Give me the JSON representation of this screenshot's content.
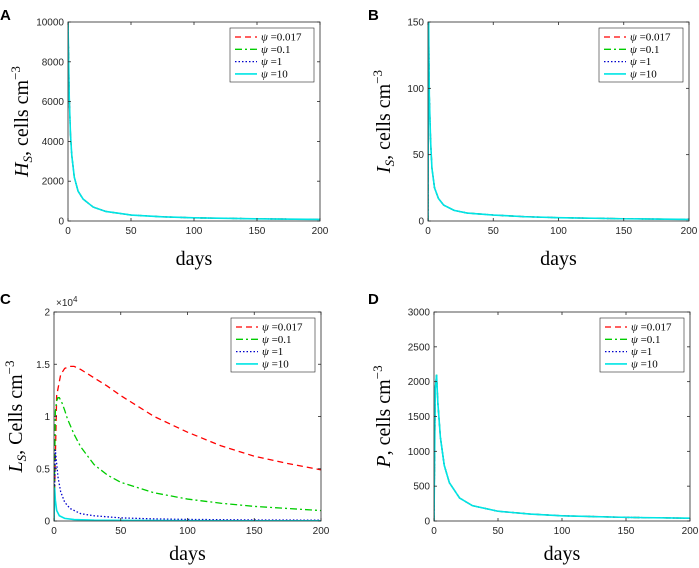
{
  "chart_data": [
    {
      "id": "A",
      "panel_label": "A",
      "type": "line",
      "xlabel": "days",
      "ylabel": {
        "main": "H",
        "sub": "S",
        "rest": ", cells cm",
        "sup": "−3"
      },
      "xlim": [
        0,
        200
      ],
      "ylim": [
        0,
        10000
      ],
      "xticks": [
        0,
        50,
        100,
        150,
        200
      ],
      "yticks": [
        0,
        2000,
        4000,
        6000,
        8000,
        10000
      ],
      "exponent": "",
      "series": [
        {
          "name": "ψ =0.017",
          "color": "#ff0000",
          "dash": "6,4",
          "x": [
            0,
            1,
            2,
            3,
            5,
            8,
            12,
            20,
            30,
            50,
            75,
            100,
            150,
            200
          ],
          "y": [
            10000,
            6200,
            4300,
            3300,
            2200,
            1500,
            1100,
            700,
            480,
            300,
            210,
            160,
            110,
            80
          ]
        },
        {
          "name": "ψ =0.1",
          "color": "#00cc00",
          "dash": "7,3,2,3",
          "x": [
            0,
            1,
            2,
            3,
            5,
            8,
            12,
            20,
            30,
            50,
            75,
            100,
            150,
            200
          ],
          "y": [
            10000,
            6200,
            4300,
            3300,
            2200,
            1500,
            1100,
            700,
            480,
            300,
            210,
            160,
            110,
            80
          ]
        },
        {
          "name": "ψ =1",
          "color": "#0000cc",
          "dash": "1.5,2",
          "x": [
            0,
            1,
            2,
            3,
            5,
            8,
            12,
            20,
            30,
            50,
            75,
            100,
            150,
            200
          ],
          "y": [
            10000,
            6200,
            4300,
            3300,
            2200,
            1500,
            1100,
            700,
            480,
            300,
            210,
            160,
            110,
            80
          ]
        },
        {
          "name": "ψ =10",
          "color": "#00e5e5",
          "dash": "",
          "x": [
            0,
            1,
            2,
            3,
            5,
            8,
            12,
            20,
            30,
            50,
            75,
            100,
            150,
            200
          ],
          "y": [
            10000,
            6200,
            4300,
            3300,
            2200,
            1500,
            1100,
            700,
            480,
            300,
            210,
            160,
            110,
            80
          ]
        }
      ]
    },
    {
      "id": "B",
      "panel_label": "B",
      "type": "line",
      "xlabel": "days",
      "ylabel": {
        "main": "I",
        "sub": "S",
        "rest": ", cells cm",
        "sup": "−3"
      },
      "xlim": [
        0,
        200
      ],
      "ylim": [
        0,
        150
      ],
      "xticks": [
        0,
        50,
        100,
        150,
        200
      ],
      "yticks": [
        0,
        50,
        100,
        150
      ],
      "exponent": "",
      "series": [
        {
          "name": "ψ =0.017",
          "color": "#ff0000",
          "dash": "6,4",
          "x": [
            0,
            0.5,
            1,
            2,
            3,
            5,
            8,
            12,
            20,
            30,
            50,
            75,
            100,
            150,
            200
          ],
          "y": [
            0,
            150,
            95,
            60,
            40,
            25,
            17,
            12,
            8,
            6,
            4.5,
            3.2,
            2.5,
            1.7,
            1.2
          ]
        },
        {
          "name": "ψ =0.1",
          "color": "#00cc00",
          "dash": "7,3,2,3",
          "x": [
            0,
            0.5,
            1,
            2,
            3,
            5,
            8,
            12,
            20,
            30,
            50,
            75,
            100,
            150,
            200
          ],
          "y": [
            0,
            150,
            95,
            60,
            40,
            25,
            17,
            12,
            8,
            6,
            4.5,
            3.2,
            2.5,
            1.7,
            1.2
          ]
        },
        {
          "name": "ψ =1",
          "color": "#0000cc",
          "dash": "1.5,2",
          "x": [
            0,
            0.5,
            1,
            2,
            3,
            5,
            8,
            12,
            20,
            30,
            50,
            75,
            100,
            150,
            200
          ],
          "y": [
            0,
            150,
            95,
            60,
            40,
            25,
            17,
            12,
            8,
            6,
            4.5,
            3.2,
            2.5,
            1.7,
            1.2
          ]
        },
        {
          "name": "ψ =10",
          "color": "#00e5e5",
          "dash": "",
          "x": [
            0,
            0.5,
            1,
            2,
            3,
            5,
            8,
            12,
            20,
            30,
            50,
            75,
            100,
            150,
            200
          ],
          "y": [
            0,
            150,
            95,
            60,
            40,
            25,
            17,
            12,
            8,
            6,
            4.5,
            3.2,
            2.5,
            1.7,
            1.2
          ]
        }
      ]
    },
    {
      "id": "C",
      "panel_label": "C",
      "type": "line",
      "xlabel": "days",
      "ylabel": {
        "main": "L",
        "sub": "S",
        "rest": ", Cells cm",
        "sup": "−3"
      },
      "xlim": [
        0,
        200
      ],
      "ylim": [
        0,
        2
      ],
      "xticks": [
        0,
        50,
        100,
        150,
        200
      ],
      "yticks": [
        0,
        0.5,
        1,
        1.5,
        2
      ],
      "exponent": "×10",
      "exponent_power": "4",
      "series": [
        {
          "name": "ψ =0.017",
          "color": "#ff0000",
          "dash": "6,4",
          "x": [
            0,
            2,
            5,
            8,
            12,
            15,
            20,
            30,
            40,
            50,
            75,
            100,
            125,
            150,
            175,
            200
          ],
          "y": [
            0,
            1.2,
            1.4,
            1.46,
            1.48,
            1.48,
            1.45,
            1.37,
            1.29,
            1.2,
            1.0,
            0.85,
            0.72,
            0.62,
            0.55,
            0.49
          ]
        },
        {
          "name": "ψ =0.1",
          "color": "#00cc00",
          "dash": "7,3,2,3",
          "x": [
            0,
            1,
            2,
            3,
            4,
            6,
            8,
            10,
            15,
            20,
            30,
            40,
            50,
            75,
            100,
            125,
            150,
            175,
            200
          ],
          "y": [
            0,
            1.05,
            1.15,
            1.18,
            1.18,
            1.13,
            1.06,
            0.98,
            0.83,
            0.71,
            0.54,
            0.44,
            0.37,
            0.27,
            0.21,
            0.17,
            0.14,
            0.12,
            0.1
          ]
        },
        {
          "name": "ψ =1",
          "color": "#0000cc",
          "dash": "1.5,2",
          "x": [
            0,
            1,
            2,
            3,
            5,
            8,
            12,
            20,
            30,
            50,
            75,
            100,
            150,
            200
          ],
          "y": [
            0,
            0.68,
            0.55,
            0.42,
            0.28,
            0.18,
            0.12,
            0.07,
            0.05,
            0.03,
            0.02,
            0.015,
            0.01,
            0.008
          ]
        },
        {
          "name": "ψ =10",
          "color": "#00e5e5",
          "dash": "",
          "x": [
            0,
            0.5,
            1,
            2,
            4,
            8,
            15,
            30,
            60,
            100,
            200
          ],
          "y": [
            0,
            0.32,
            0.2,
            0.1,
            0.05,
            0.025,
            0.014,
            0.008,
            0.005,
            0.003,
            0.002
          ]
        }
      ]
    },
    {
      "id": "D",
      "panel_label": "D",
      "type": "line",
      "xlabel": "days",
      "ylabel": {
        "main": "P",
        "sub": "",
        "rest": ", cells cm",
        "sup": "−3"
      },
      "xlim": [
        0,
        200
      ],
      "ylim": [
        0,
        3000
      ],
      "xticks": [
        0,
        50,
        100,
        150,
        200
      ],
      "yticks": [
        0,
        500,
        1000,
        1500,
        2000,
        2500,
        3000
      ],
      "exponent": "",
      "series": [
        {
          "name": "ψ =0.017",
          "color": "#ff0000",
          "dash": "6,4",
          "x": [
            0,
            1,
            2,
            3,
            5,
            8,
            12,
            20,
            30,
            50,
            75,
            100,
            150,
            200
          ],
          "y": [
            0,
            1900,
            2100,
            1700,
            1200,
            800,
            550,
            330,
            220,
            140,
            100,
            75,
            52,
            40
          ]
        },
        {
          "name": "ψ =0.1",
          "color": "#00cc00",
          "dash": "7,3,2,3",
          "x": [
            0,
            1,
            2,
            3,
            5,
            8,
            12,
            20,
            30,
            50,
            75,
            100,
            150,
            200
          ],
          "y": [
            0,
            1900,
            2100,
            1700,
            1200,
            800,
            550,
            330,
            220,
            140,
            100,
            75,
            52,
            40
          ]
        },
        {
          "name": "ψ =1",
          "color": "#0000cc",
          "dash": "1.5,2",
          "x": [
            0,
            1,
            2,
            3,
            5,
            8,
            12,
            20,
            30,
            50,
            75,
            100,
            150,
            200
          ],
          "y": [
            0,
            1900,
            2100,
            1700,
            1200,
            800,
            550,
            330,
            220,
            140,
            100,
            75,
            52,
            40
          ]
        },
        {
          "name": "ψ =10",
          "color": "#00e5e5",
          "dash": "",
          "x": [
            0,
            1,
            2,
            3,
            5,
            8,
            12,
            20,
            30,
            50,
            75,
            100,
            150,
            200
          ],
          "y": [
            0,
            1900,
            2100,
            1700,
            1200,
            800,
            550,
            330,
            220,
            140,
            100,
            75,
            52,
            40
          ]
        }
      ]
    }
  ]
}
